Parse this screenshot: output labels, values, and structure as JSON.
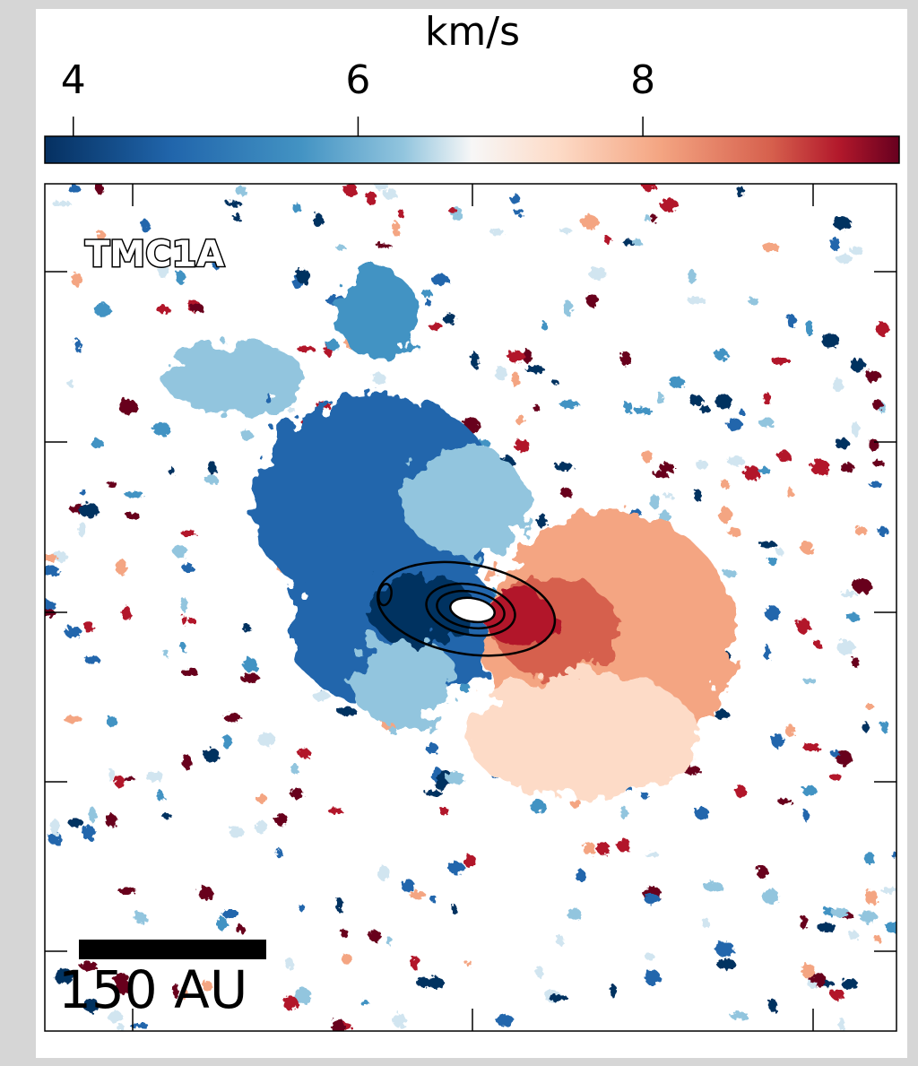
{
  "chart_data": {
    "type": "velocity-map",
    "colorbar_label": "km/s",
    "clim": [
      3.8,
      9.8
    ],
    "colorbar_ticks": [
      4,
      6,
      8
    ],
    "colormap": "RdBu_r",
    "source_label": "TMC1A",
    "scale_bar_label": "150 AU"
  }
}
